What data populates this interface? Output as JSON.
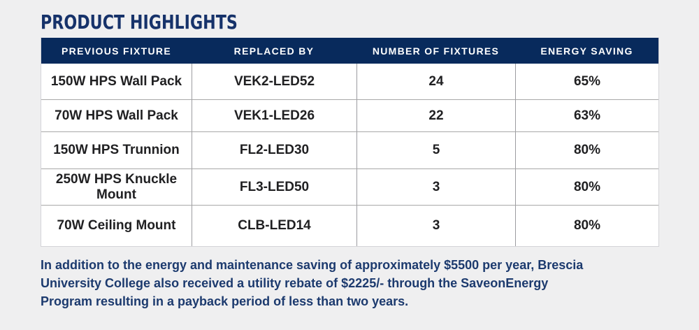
{
  "title": "PRODUCT HIGHLIGHTS",
  "table": {
    "headers": [
      "PREVIOUS FIXTURE",
      "REPLACED BY",
      "NUMBER OF FIXTURES",
      "ENERGY SAVING"
    ],
    "rows": [
      [
        "150W HPS Wall Pack",
        "VEK2-LED52",
        "24",
        "65%"
      ],
      [
        "70W HPS Wall Pack",
        "VEK1-LED26",
        "22",
        "63%"
      ],
      [
        "150W HPS Trunnion",
        "FL2-LED30",
        "5",
        "80%"
      ],
      [
        "250W HPS Knuckle Mount",
        "FL3-LED50",
        "3",
        "80%"
      ],
      [
        "70W Ceiling Mount",
        "CLB-LED14",
        "3",
        "80%"
      ]
    ]
  },
  "summary": {
    "lines": [
      "In addition to the energy and maintenance saving of approximately $5500 per year, Brescia",
      "University College also received a utility rebate of $2225/- through the SaveonEnergy",
      "Program resulting in a payback period of less than two years."
    ]
  },
  "colors": {
    "page_background": "#efeff0",
    "table_header_background": "#082a5c",
    "title_text": "#1a3768",
    "cell_text": "#202022",
    "summary_text": "#1c3a6e"
  }
}
